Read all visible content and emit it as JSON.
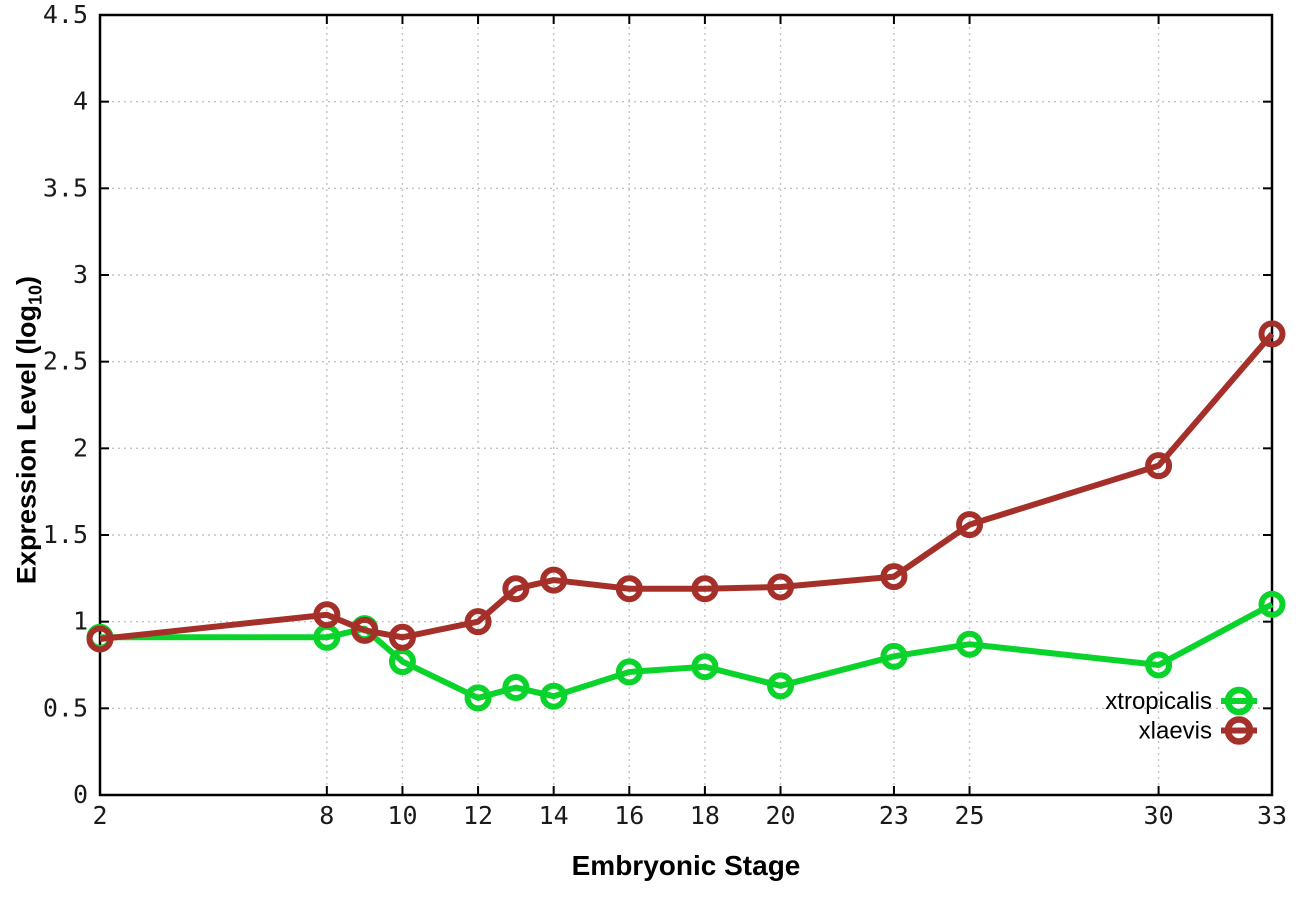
{
  "chart_data": {
    "type": "line",
    "title": "",
    "xlabel": "Embryonic Stage",
    "ylabel": {
      "main": "Expression Level (log",
      "sub": "10",
      "end": ")"
    },
    "xlim": [
      2,
      33
    ],
    "ylim": [
      0,
      4.5
    ],
    "grid": true,
    "legend_position": "inside-bottom-right",
    "x": [
      2,
      8,
      9,
      10,
      12,
      13,
      14,
      16,
      18,
      20,
      23,
      25,
      30,
      33
    ],
    "xtick_values": [
      2,
      8,
      10,
      12,
      14,
      16,
      18,
      20,
      23,
      25,
      30,
      33
    ],
    "xtick_labels": [
      "2",
      "8",
      "10",
      "12",
      "14",
      "16",
      "18",
      "20",
      "23",
      "25",
      "30",
      "33"
    ],
    "ytick_values": [
      0,
      0.5,
      1,
      1.5,
      2,
      2.5,
      3,
      3.5,
      4,
      4.5
    ],
    "ytick_labels": [
      "0",
      "0.5",
      "1",
      "1.5",
      "2",
      "2.5",
      "3",
      "3.5",
      "4",
      "4.5"
    ],
    "series": [
      {
        "name": "xtropicalis",
        "color": "#0ad42c",
        "values": [
          0.91,
          0.91,
          0.96,
          0.77,
          0.56,
          0.62,
          0.57,
          0.71,
          0.74,
          0.63,
          0.8,
          0.87,
          0.75,
          1.1
        ]
      },
      {
        "name": "xlaevis",
        "color": "#a5302a",
        "values": [
          0.9,
          1.04,
          0.95,
          0.91,
          1.0,
          1.19,
          1.24,
          1.19,
          1.19,
          1.2,
          1.26,
          1.56,
          1.9,
          2.66
        ]
      }
    ],
    "colors": {
      "grid": "#c4c4c4",
      "frame": "#000000",
      "tick_text": "#1a1a1a",
      "background": "#ffffff"
    }
  }
}
